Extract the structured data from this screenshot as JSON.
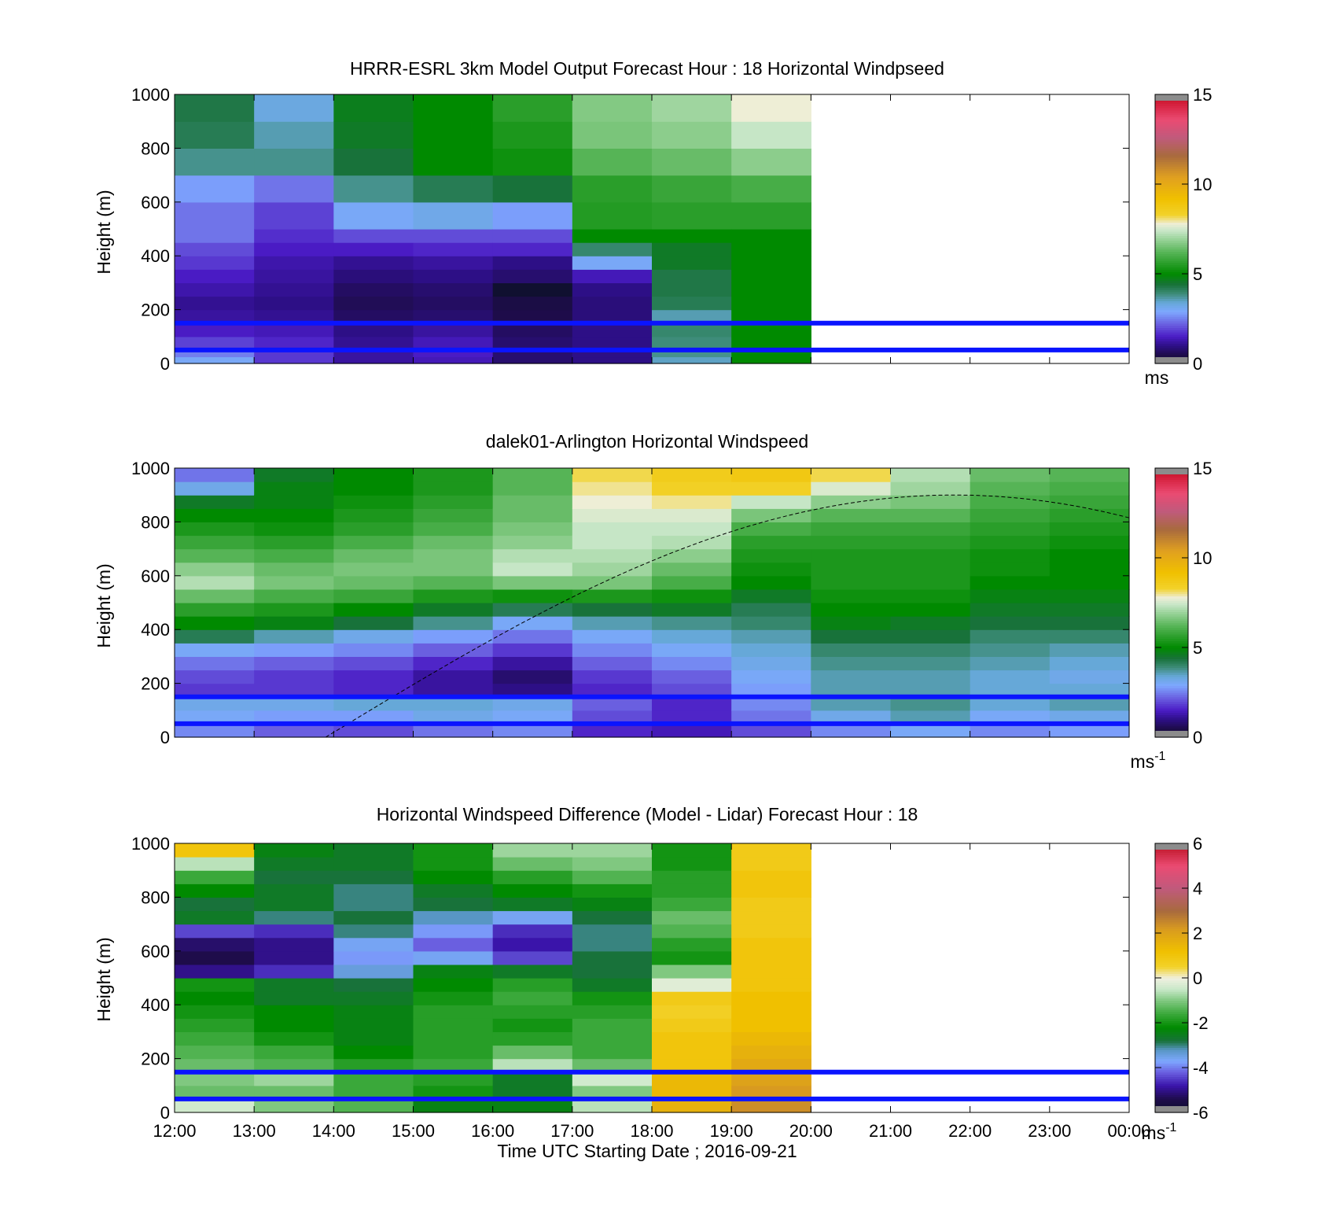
{
  "figure": {
    "xlabel": "Time UTC  Starting Date ; 2016-09-21",
    "x_tick_labels": [
      "12:00",
      "13:00",
      "14:00",
      "15:00",
      "16:00",
      "17:00",
      "18:00",
      "19:00",
      "20:00",
      "21:00",
      "22:00",
      "23:00",
      "00:00"
    ]
  },
  "chart_data": [
    {
      "type": "heatmap",
      "title": "HRRR-ESRL 3km Model Output   Forecast Hour : 18 Horizontal Windpseed",
      "ylabel": "Height (m)",
      "xlim": [
        "12:00",
        "00:00"
      ],
      "ylim": [
        0,
        1000
      ],
      "y_ticks": [
        0,
        200,
        400,
        600,
        800,
        1000
      ],
      "colorbar": {
        "range": [
          0,
          15
        ],
        "ticks": [
          0,
          5,
          10,
          15
        ],
        "unit_label": "ms",
        "unit_superscript": ""
      },
      "time_columns": [
        "12:00",
        "13:00",
        "14:00",
        "15:00",
        "16:00",
        "17:00",
        "18:00",
        "19:00"
      ],
      "column_width_hours": 1,
      "height_levels_m": [
        25,
        50,
        100,
        150,
        200,
        250,
        300,
        350,
        400,
        450,
        500,
        600,
        700,
        800,
        900,
        1000
      ],
      "windspeed_ms": [
        [
          3.0,
          1.8,
          1.2,
          1.4,
          0.8,
          1.0,
          3.5,
          5.0
        ],
        [
          2.5,
          1.8,
          1.2,
          1.5,
          0.8,
          1.0,
          3.8,
          5.0
        ],
        [
          1.9,
          1.6,
          1.1,
          1.4,
          0.8,
          1.0,
          3.9,
          5.0
        ],
        [
          1.5,
          1.4,
          1.0,
          1.2,
          0.7,
          1.0,
          4.0,
          5.0
        ],
        [
          1.2,
          1.1,
          0.7,
          0.8,
          0.5,
          0.9,
          3.6,
          5.0
        ],
        [
          1.1,
          1.0,
          0.6,
          0.7,
          0.4,
          0.9,
          4.2,
          5.0
        ],
        [
          1.3,
          1.1,
          0.7,
          0.8,
          0.0,
          1.0,
          4.3,
          5.0
        ],
        [
          1.5,
          1.2,
          0.9,
          1.0,
          0.8,
          1.4,
          4.3,
          5.0
        ],
        [
          1.8,
          1.3,
          1.1,
          1.2,
          1.0,
          3.0,
          4.6,
          5.0
        ],
        [
          2.0,
          1.5,
          1.5,
          1.6,
          1.6,
          4.0,
          4.6,
          5.0
        ],
        [
          2.4,
          1.7,
          2.0,
          2.0,
          2.0,
          5.0,
          5.0,
          5.0
        ],
        [
          2.4,
          1.9,
          3.0,
          3.2,
          2.8,
          5.5,
          5.6,
          5.6
        ],
        [
          2.8,
          2.4,
          3.8,
          4.2,
          4.4,
          5.6,
          5.8,
          6.0
        ],
        [
          3.8,
          3.8,
          4.4,
          5.0,
          5.2,
          6.2,
          6.4,
          6.8
        ],
        [
          4.2,
          3.6,
          4.6,
          5.0,
          5.4,
          6.6,
          6.8,
          7.4
        ],
        [
          4.3,
          3.3,
          4.7,
          5.0,
          5.6,
          6.7,
          7.0,
          7.8
        ]
      ],
      "overlay_lines_m": [
        50,
        150
      ]
    },
    {
      "type": "heatmap",
      "title": "dalek01-Arlington  Horizontal Windspeed",
      "ylabel": "Height (m)",
      "xlim": [
        "12:00",
        "00:00"
      ],
      "ylim": [
        0,
        1000
      ],
      "y_ticks": [
        0,
        200,
        400,
        600,
        800,
        1000
      ],
      "colorbar": {
        "range": [
          0,
          15
        ],
        "ticks": [
          0,
          5,
          10,
          15
        ],
        "unit_label": "ms",
        "unit_superscript": "-1"
      },
      "time_columns": [
        "12:00",
        "13:00",
        "14:00",
        "15:00",
        "16:00",
        "17:00",
        "18:00",
        "19:00",
        "20:00",
        "21:00",
        "22:00",
        "23:00"
      ],
      "column_width_hours": 1,
      "height_levels_m": [
        50,
        100,
        150,
        200,
        250,
        300,
        350,
        400,
        450,
        500,
        550,
        600,
        650,
        700,
        750,
        800,
        850,
        900,
        950,
        1000
      ],
      "windspeed_ms": [
        [
          2.6,
          2.2,
          2.0,
          2.4,
          2.6,
          1.6,
          1.4,
          2.0,
          2.6,
          3.0,
          2.6,
          2.8
        ],
        [
          3.0,
          2.8,
          2.8,
          3.2,
          3.0,
          2.0,
          1.6,
          2.4,
          3.2,
          3.6,
          3.0,
          3.2
        ],
        [
          3.2,
          3.2,
          3.4,
          3.4,
          3.2,
          2.2,
          1.6,
          2.6,
          3.6,
          3.8,
          3.4,
          3.6
        ],
        [
          1.8,
          1.8,
          1.6,
          1.2,
          1.0,
          1.6,
          2.0,
          2.8,
          3.6,
          3.6,
          3.4,
          3.4
        ],
        [
          2.0,
          1.8,
          1.6,
          1.2,
          0.8,
          1.8,
          2.2,
          3.0,
          3.6,
          3.6,
          3.4,
          3.2
        ],
        [
          2.4,
          2.2,
          2.0,
          1.6,
          1.2,
          2.2,
          2.6,
          3.2,
          3.8,
          3.8,
          3.6,
          3.4
        ],
        [
          3.0,
          2.8,
          2.6,
          2.2,
          1.8,
          2.6,
          3.0,
          3.4,
          4.0,
          4.0,
          3.8,
          3.6
        ],
        [
          4.2,
          3.6,
          3.2,
          2.8,
          2.4,
          3.0,
          3.4,
          3.6,
          4.4,
          4.4,
          4.0,
          4.0
        ],
        [
          5.0,
          4.8,
          4.4,
          3.8,
          3.0,
          3.6,
          3.8,
          4.0,
          4.8,
          4.6,
          4.4,
          4.4
        ],
        [
          5.6,
          5.4,
          5.0,
          4.6,
          4.2,
          4.4,
          4.6,
          4.2,
          5.0,
          5.0,
          4.6,
          4.6
        ],
        [
          6.4,
          6.0,
          5.8,
          5.4,
          5.2,
          5.4,
          5.2,
          4.6,
          5.2,
          5.2,
          4.8,
          4.8
        ],
        [
          7.2,
          6.6,
          6.4,
          6.2,
          6.6,
          6.6,
          6.0,
          5.0,
          5.4,
          5.4,
          5.0,
          5.0
        ],
        [
          6.8,
          6.4,
          6.6,
          6.6,
          7.4,
          7.0,
          6.4,
          5.2,
          5.4,
          5.4,
          5.2,
          5.0
        ],
        [
          6.2,
          6.0,
          6.4,
          6.6,
          7.2,
          7.2,
          6.8,
          5.4,
          5.4,
          5.4,
          5.2,
          5.0
        ],
        [
          5.8,
          5.6,
          6.0,
          6.4,
          6.8,
          7.4,
          7.2,
          5.6,
          5.6,
          5.6,
          5.4,
          5.2
        ],
        [
          5.4,
          5.2,
          5.6,
          6.0,
          6.6,
          7.4,
          7.4,
          6.0,
          5.8,
          5.8,
          5.6,
          5.4
        ],
        [
          5.0,
          5.0,
          5.4,
          5.8,
          6.4,
          7.6,
          7.6,
          6.6,
          6.2,
          6.2,
          5.8,
          5.6
        ],
        [
          4.6,
          4.8,
          5.2,
          5.6,
          6.4,
          7.8,
          8.0,
          7.4,
          6.8,
          6.6,
          6.0,
          5.8
        ],
        [
          3.2,
          4.8,
          5.0,
          5.4,
          6.2,
          8.0,
          8.4,
          8.4,
          7.6,
          7.0,
          6.2,
          6.0
        ],
        [
          2.4,
          4.6,
          5.0,
          5.4,
          6.2,
          8.2,
          8.6,
          8.8,
          8.2,
          7.2,
          6.4,
          6.2
        ]
      ],
      "overlay_lines_m": [
        50,
        150
      ]
    },
    {
      "type": "heatmap",
      "title": "Horizontal Windspeed Difference (Model - Lidar) Forecast Hour : 18",
      "ylabel": "Height (m)",
      "xlim": [
        "12:00",
        "00:00"
      ],
      "ylim": [
        0,
        1000
      ],
      "y_ticks": [
        0,
        200,
        400,
        600,
        800,
        1000
      ],
      "colorbar": {
        "range": [
          -6,
          6
        ],
        "ticks": [
          -6,
          -4,
          -2,
          0,
          2,
          4,
          6
        ],
        "unit_label": "ms",
        "unit_superscript": "-1"
      },
      "time_columns": [
        "12:00",
        "13:00",
        "14:00",
        "15:00",
        "16:00",
        "17:00",
        "18:00",
        "19:00"
      ],
      "column_width_hours": 1,
      "height_levels_m": [
        50,
        100,
        150,
        200,
        250,
        300,
        350,
        400,
        450,
        500,
        550,
        600,
        650,
        700,
        750,
        800,
        850,
        900,
        950,
        1000
      ],
      "difference_ms": [
        [
          -0.4,
          -1.0,
          -1.4,
          -2.4,
          -2.4,
          -0.6,
          1.6,
          2.4
        ],
        [
          -1.2,
          -1.2,
          -1.6,
          -2.0,
          -2.6,
          -1.0,
          1.4,
          2.2
        ],
        [
          -1.0,
          -0.8,
          -1.6,
          -1.8,
          -2.6,
          -0.4,
          1.4,
          2.0
        ],
        [
          -1.2,
          -1.4,
          -1.8,
          -1.6,
          -0.6,
          -1.2,
          1.0,
          1.8
        ],
        [
          -1.4,
          -1.6,
          -2.2,
          -1.8,
          -1.2,
          -1.6,
          1.0,
          1.6
        ],
        [
          -1.6,
          -2.0,
          -2.4,
          -1.8,
          -1.8,
          -1.6,
          1.0,
          1.4
        ],
        [
          -1.8,
          -2.2,
          -2.4,
          -1.8,
          -2.0,
          -1.6,
          0.8,
          1.2
        ],
        [
          -2.0,
          -2.2,
          -2.4,
          -1.8,
          -1.8,
          -1.8,
          0.6,
          1.2
        ],
        [
          -2.2,
          -2.6,
          -2.6,
          -2.0,
          -1.6,
          -2.0,
          0.8,
          1.2
        ],
        [
          -2.0,
          -2.6,
          -2.8,
          -2.2,
          -1.8,
          -2.6,
          -0.2,
          1.0
        ],
        [
          -5.0,
          -4.6,
          -3.4,
          -2.4,
          -2.6,
          -2.8,
          -1.0,
          1.0
        ],
        [
          -5.4,
          -5.0,
          -3.8,
          -3.6,
          -4.4,
          -2.8,
          -2.0,
          1.0
        ],
        [
          -5.2,
          -5.0,
          -3.6,
          -4.2,
          -4.8,
          -3.0,
          -1.8,
          1.0
        ],
        [
          -4.4,
          -4.6,
          -3.0,
          -3.8,
          -4.6,
          -3.0,
          -1.4,
          0.8
        ],
        [
          -2.6,
          -3.0,
          -2.8,
          -3.2,
          -3.6,
          -2.8,
          -1.2,
          0.8
        ],
        [
          -2.8,
          -2.6,
          -3.0,
          -2.8,
          -2.6,
          -2.4,
          -1.6,
          0.8
        ],
        [
          -2.2,
          -2.6,
          -3.0,
          -2.6,
          -2.2,
          -2.0,
          -1.8,
          1.0
        ],
        [
          -1.6,
          -2.8,
          -2.8,
          -2.2,
          -1.8,
          -1.4,
          -1.8,
          1.0
        ],
        [
          -0.6,
          -2.6,
          -2.6,
          -2.0,
          -1.2,
          -1.0,
          -2.0,
          0.8
        ],
        [
          1.0,
          -2.4,
          -2.6,
          -2.0,
          -0.8,
          -0.8,
          -2.0,
          0.8
        ]
      ],
      "overlay_lines_m": [
        50,
        150
      ]
    }
  ]
}
